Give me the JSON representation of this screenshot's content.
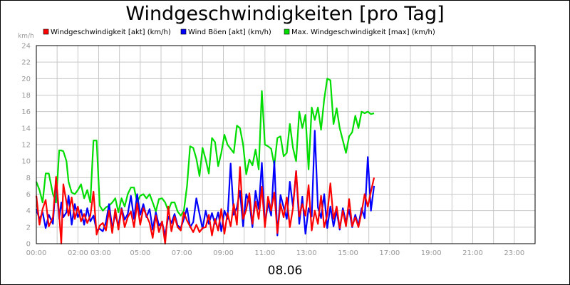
{
  "chart_data": {
    "type": "line",
    "title": "Windgeschwindigkeiten [pro Tag]",
    "ylabel": "km/h",
    "xlabel": "08.06",
    "ylim": [
      0,
      24
    ],
    "yticks": [
      0,
      2,
      4,
      6,
      8,
      10,
      12,
      14,
      16,
      18,
      20,
      22,
      24
    ],
    "xlim_hours": [
      0,
      24
    ],
    "xtick_labels": [
      "00:00",
      "02:00 03:00",
      "05:00",
      "07:00",
      "09:00",
      "11:00",
      "13:00",
      "15:00",
      "17:00",
      "19:00",
      "21:00",
      "23:00"
    ],
    "xtick_hours": [
      0,
      2.55,
      5,
      7,
      9,
      11,
      13,
      15,
      17,
      19,
      21,
      23
    ],
    "grid": true,
    "legend_position": "top",
    "series": [
      {
        "name": "Windgeschwindigkeit [akt] (km/h)",
        "color": "#ff0000",
        "x": [
          0.0,
          0.15,
          0.3,
          0.45,
          0.6,
          0.8,
          0.95,
          1.1,
          1.2,
          1.3,
          1.45,
          1.55,
          1.7,
          1.85,
          2.0,
          2.15,
          2.3,
          2.45,
          2.6,
          2.75,
          2.9,
          3.05,
          3.2,
          3.35,
          3.5,
          3.65,
          3.8,
          3.95,
          4.1,
          4.25,
          4.4,
          4.55,
          4.7,
          4.85,
          5.0,
          5.15,
          5.3,
          5.45,
          5.6,
          5.75,
          5.9,
          6.05,
          6.2,
          6.35,
          6.5,
          6.65,
          6.8,
          6.95,
          7.1,
          7.25,
          7.4,
          7.55,
          7.7,
          7.85,
          8.0,
          8.15,
          8.3,
          8.45,
          8.6,
          8.75,
          8.9,
          9.05,
          9.2,
          9.35,
          9.5,
          9.65,
          9.8,
          9.95,
          10.1,
          10.25,
          10.4,
          10.55,
          10.7,
          10.85,
          11.0,
          11.15,
          11.3,
          11.45,
          11.6,
          11.75,
          11.9,
          12.05,
          12.2,
          12.35,
          12.5,
          12.65,
          12.8,
          12.95,
          13.1,
          13.25,
          13.4,
          13.55,
          13.7,
          13.85,
          14.0,
          14.15,
          14.3,
          14.45,
          14.6,
          14.75,
          14.9,
          15.05,
          15.2,
          15.35,
          15.5,
          15.65,
          15.8,
          15.95,
          16.1,
          16.25
        ],
        "values": [
          5.8,
          2.3,
          4.2,
          5.3,
          2.1,
          3.2,
          8.1,
          3.5,
          0.0,
          7.2,
          5.0,
          3.4,
          5.6,
          3.0,
          4.5,
          2.7,
          3.6,
          2.5,
          3.4,
          6.3,
          1.1,
          2.2,
          2.5,
          1.6,
          4.0,
          1.3,
          4.2,
          1.7,
          4.2,
          2.0,
          3.2,
          3.9,
          2.0,
          4.9,
          2.3,
          4.3,
          3.4,
          2.5,
          0.7,
          3.4,
          1.4,
          2.7,
          0.0,
          4.5,
          1.5,
          3.3,
          2.0,
          1.6,
          3.8,
          2.8,
          2.1,
          1.4,
          2.3,
          1.4,
          1.9,
          2.0,
          3.5,
          1.0,
          3.0,
          1.6,
          4.2,
          1.2,
          3.7,
          2.1,
          4.8,
          2.3,
          9.3,
          3.0,
          4.1,
          6.1,
          2.4,
          5.1,
          3.0,
          6.9,
          2.0,
          5.7,
          4.0,
          6.2,
          1.3,
          4.8,
          3.2,
          5.6,
          2.0,
          4.3,
          8.8,
          3.3,
          4.8,
          3.4,
          7.1,
          1.6,
          4.0,
          2.4,
          5.8,
          2.0,
          3.5,
          7.3,
          3.0,
          4.5,
          1.9,
          4.0,
          2.1,
          5.4,
          2.1,
          3.2,
          2.0,
          3.8,
          6.0,
          4.5,
          6.3,
          8.0
        ]
      },
      {
        "name": "Wind Böen [akt] (km/h)",
        "color": "#0000ff",
        "x": [
          0.0,
          0.15,
          0.3,
          0.45,
          0.6,
          0.8,
          0.95,
          1.1,
          1.2,
          1.3,
          1.45,
          1.55,
          1.7,
          1.85,
          2.0,
          2.15,
          2.3,
          2.45,
          2.6,
          2.75,
          2.9,
          3.05,
          3.2,
          3.35,
          3.5,
          3.65,
          3.8,
          3.95,
          4.1,
          4.25,
          4.4,
          4.55,
          4.7,
          4.85,
          5.0,
          5.15,
          5.3,
          5.45,
          5.6,
          5.75,
          5.9,
          6.05,
          6.2,
          6.35,
          6.5,
          6.65,
          6.8,
          6.95,
          7.1,
          7.25,
          7.4,
          7.55,
          7.7,
          7.85,
          8.0,
          8.15,
          8.3,
          8.45,
          8.6,
          8.75,
          8.9,
          9.05,
          9.2,
          9.35,
          9.5,
          9.65,
          9.8,
          9.95,
          10.1,
          10.25,
          10.4,
          10.55,
          10.7,
          10.85,
          11.0,
          11.15,
          11.3,
          11.45,
          11.6,
          11.75,
          11.9,
          12.05,
          12.2,
          12.35,
          12.5,
          12.65,
          12.8,
          12.95,
          13.1,
          13.25,
          13.4,
          13.55,
          13.7,
          13.85,
          14.0,
          14.15,
          14.3,
          14.45,
          14.6,
          14.75,
          14.9,
          15.05,
          15.2,
          15.35,
          15.5,
          15.65,
          15.8,
          15.95,
          16.1,
          16.25
        ],
        "values": [
          4.2,
          3.0,
          3.8,
          1.9,
          3.5,
          2.4,
          7.9,
          3.0,
          5.0,
          3.2,
          3.8,
          5.8,
          2.3,
          4.8,
          3.2,
          4.1,
          2.3,
          4.3,
          2.7,
          3.4,
          1.6,
          1.8,
          1.5,
          2.6,
          4.8,
          1.9,
          3.5,
          2.2,
          4.3,
          2.9,
          3.6,
          5.8,
          3.0,
          6.0,
          3.5,
          4.8,
          3.2,
          4.2,
          1.7,
          3.8,
          2.2,
          2.6,
          1.0,
          3.3,
          2.5,
          3.6,
          2.2,
          1.9,
          3.0,
          4.3,
          2.0,
          2.6,
          5.5,
          3.6,
          1.8,
          4.0,
          2.4,
          3.7,
          2.4,
          3.8,
          1.5,
          4.0,
          3.0,
          9.7,
          3.5,
          4.4,
          6.4,
          2.1,
          6.0,
          5.0,
          2.0,
          6.4,
          4.2,
          9.8,
          2.3,
          4.9,
          3.4,
          10.0,
          1.0,
          5.9,
          4.4,
          3.0,
          7.5,
          4.5,
          8.8,
          2.4,
          5.7,
          1.2,
          4.3,
          3.3,
          13.7,
          4.4,
          3.1,
          6.0,
          1.9,
          4.5,
          2.1,
          4.0,
          1.7,
          4.3,
          2.6,
          4.1,
          2.0,
          3.5,
          2.2,
          4.3,
          3.1,
          10.5,
          4.0,
          7.0
        ]
      },
      {
        "name": "Max. Windgeschwindigkeit [max] (km/h)",
        "color": "#00dd00",
        "x": [
          0.0,
          0.15,
          0.3,
          0.45,
          0.6,
          0.8,
          0.95,
          1.1,
          1.2,
          1.3,
          1.45,
          1.55,
          1.7,
          1.85,
          2.0,
          2.15,
          2.3,
          2.45,
          2.6,
          2.75,
          2.9,
          3.05,
          3.2,
          3.35,
          3.5,
          3.65,
          3.8,
          3.95,
          4.1,
          4.25,
          4.4,
          4.55,
          4.7,
          4.85,
          5.0,
          5.15,
          5.3,
          5.45,
          5.6,
          5.75,
          5.9,
          6.05,
          6.2,
          6.35,
          6.5,
          6.65,
          6.8,
          6.95,
          7.1,
          7.25,
          7.4,
          7.55,
          7.7,
          7.85,
          8.0,
          8.15,
          8.3,
          8.45,
          8.6,
          8.75,
          8.9,
          9.05,
          9.2,
          9.35,
          9.5,
          9.65,
          9.8,
          9.95,
          10.1,
          10.25,
          10.4,
          10.55,
          10.7,
          10.85,
          11.0,
          11.15,
          11.3,
          11.45,
          11.6,
          11.75,
          11.9,
          12.05,
          12.2,
          12.35,
          12.5,
          12.65,
          12.8,
          12.95,
          13.1,
          13.25,
          13.4,
          13.55,
          13.7,
          13.85,
          14.0,
          14.15,
          14.3,
          14.45,
          14.6,
          14.75,
          14.9,
          15.05,
          15.2,
          15.35,
          15.5,
          15.65,
          15.8,
          15.95,
          16.1,
          16.25
        ],
        "values": [
          7.5,
          6.5,
          5.0,
          8.5,
          8.5,
          6.0,
          5.0,
          11.3,
          11.3,
          11.2,
          10.0,
          7.5,
          6.2,
          6.0,
          6.5,
          7.2,
          5.5,
          6.5,
          5.0,
          12.5,
          12.5,
          4.6,
          4.0,
          4.4,
          4.6,
          5.0,
          5.5,
          3.8,
          5.5,
          4.5,
          6.0,
          6.8,
          6.8,
          5.0,
          5.8,
          6.0,
          5.5,
          6.0,
          5.0,
          3.9,
          5.4,
          5.5,
          5.0,
          4.0,
          5.0,
          5.0,
          3.9,
          3.4,
          4.0,
          7.0,
          11.8,
          11.6,
          10.3,
          8.2,
          11.6,
          10.2,
          8.5,
          12.8,
          12.3,
          9.4,
          11.0,
          13.2,
          12.0,
          11.5,
          11.0,
          14.3,
          14.0,
          12.0,
          8.4,
          10.2,
          9.5,
          11.4,
          9.0,
          18.5,
          12.0,
          11.8,
          11.5,
          9.5,
          12.8,
          13.0,
          10.6,
          11.0,
          14.5,
          11.6,
          10.0,
          16.0,
          14.0,
          15.6,
          9.0,
          16.5,
          15.0,
          16.5,
          13.8,
          17.5,
          20.0,
          19.8,
          14.5,
          16.4,
          14.0,
          12.5,
          11.0,
          13.0,
          13.5,
          15.5,
          14.0,
          16.0,
          15.8,
          16.0,
          15.7,
          15.8
        ]
      }
    ]
  }
}
